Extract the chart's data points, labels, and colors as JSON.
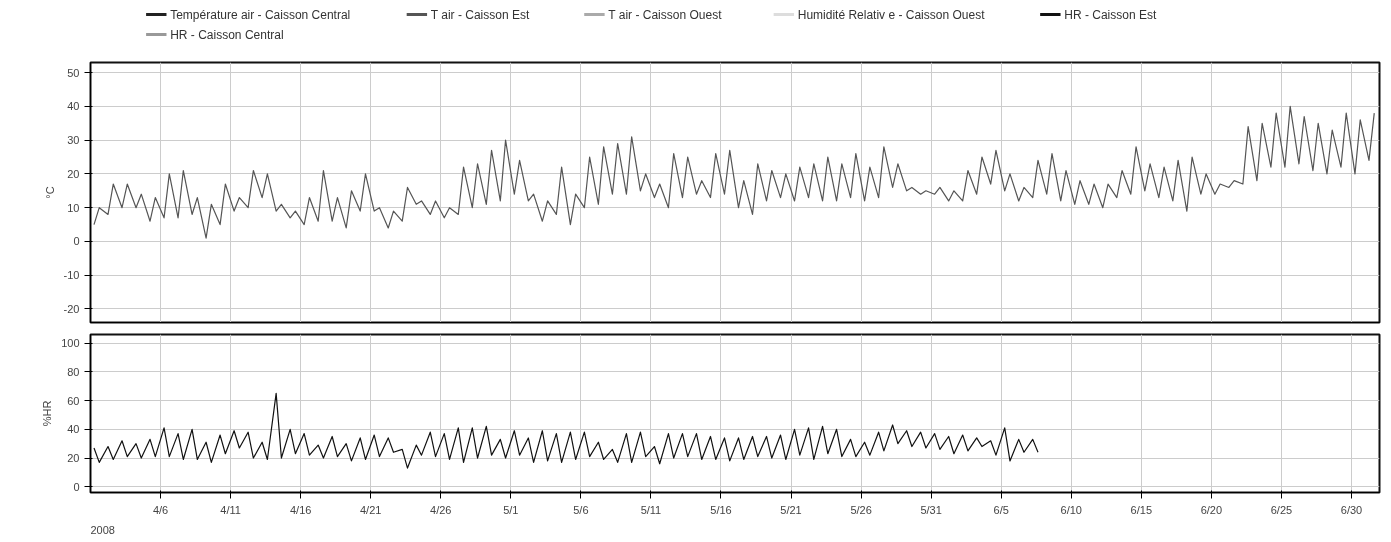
{
  "chart_data": [
    {
      "type": "line",
      "ylabel": "°C",
      "xlim": [
        "2008-04-01",
        "2008-07-02"
      ],
      "ylim": [
        -24,
        53
      ],
      "yticks": [
        -20,
        -10,
        0,
        10,
        20,
        30,
        40,
        50
      ],
      "xticks": [
        {
          "value": "2008-04-06",
          "label": null
        },
        {
          "value": "2008-04-11",
          "label": null
        },
        {
          "value": "2008-04-16",
          "label": null
        },
        {
          "value": "2008-04-21",
          "label": null
        },
        {
          "value": "2008-04-26",
          "label": null
        },
        {
          "value": "2008-05-01",
          "label": null
        },
        {
          "value": "2008-05-06",
          "label": null
        },
        {
          "value": "2008-05-11",
          "label": null
        },
        {
          "value": "2008-05-16",
          "label": null
        },
        {
          "value": "2008-05-21",
          "label": null
        },
        {
          "value": "2008-05-26",
          "label": null
        },
        {
          "value": "2008-05-31",
          "label": null
        },
        {
          "value": "2008-06-05",
          "label": null
        },
        {
          "value": "2008-06-10",
          "label": null
        },
        {
          "value": "2008-06-15",
          "label": null
        },
        {
          "value": "2008-06-20",
          "label": null
        },
        {
          "value": "2008-06-25",
          "label": null
        },
        {
          "value": "2008-06-30",
          "label": null
        }
      ],
      "tick_labels": "y",
      "grid": true,
      "legend": "top",
      "marker": "none",
      "series": [
        {
          "name": "Température air - Caisson Central",
          "color": "#222222"
        },
        {
          "name": "T air - Caisson Est",
          "color": "#555555",
          "x": [
            "2008-04-01T06:00",
            "2008-04-01T15:00",
            "2008-04-02T06:00",
            "2008-04-02T15:00",
            "2008-04-03T06:00",
            "2008-04-03T15:00",
            "2008-04-04T06:00",
            "2008-04-04T15:00",
            "2008-04-05T06:00",
            "2008-04-05T15:00",
            "2008-04-06T06:00",
            "2008-04-06T15:00",
            "2008-04-07T06:00",
            "2008-04-07T15:00",
            "2008-04-08T06:00",
            "2008-04-08T15:00",
            "2008-04-09T06:00",
            "2008-04-09T15:00",
            "2008-04-10T06:00",
            "2008-04-10T15:00",
            "2008-04-11T06:00",
            "2008-04-11T15:00",
            "2008-04-12T06:00",
            "2008-04-12T15:00",
            "2008-04-13T06:00",
            "2008-04-13T15:00",
            "2008-04-14T06:00",
            "2008-04-14T15:00",
            "2008-04-15T06:00",
            "2008-04-15T15:00",
            "2008-04-16T06:00",
            "2008-04-16T15:00",
            "2008-04-17T06:00",
            "2008-04-17T15:00",
            "2008-04-18T06:00",
            "2008-04-18T15:00",
            "2008-04-19T06:00",
            "2008-04-19T15:00",
            "2008-04-20T06:00",
            "2008-04-20T15:00",
            "2008-04-21T06:00",
            "2008-04-21T15:00",
            "2008-04-22T06:00",
            "2008-04-22T15:00",
            "2008-04-23T06:00",
            "2008-04-23T15:00",
            "2008-04-24T06:00",
            "2008-04-24T15:00",
            "2008-04-25T06:00",
            "2008-04-25T15:00",
            "2008-04-26T06:00",
            "2008-04-26T15:00",
            "2008-04-27T06:00",
            "2008-04-27T15:00",
            "2008-04-28T06:00",
            "2008-04-28T15:00",
            "2008-04-29T06:00",
            "2008-04-29T15:00",
            "2008-04-30T06:00",
            "2008-04-30T15:00",
            "2008-05-01T06:00",
            "2008-05-01T15:00",
            "2008-05-02T06:00",
            "2008-05-02T15:00",
            "2008-05-03T06:00",
            "2008-05-03T15:00",
            "2008-05-04T06:00",
            "2008-05-04T15:00",
            "2008-05-05T06:00",
            "2008-05-05T15:00",
            "2008-05-06T06:00",
            "2008-05-06T15:00",
            "2008-05-07T06:00",
            "2008-05-07T15:00",
            "2008-05-08T06:00",
            "2008-05-08T15:00",
            "2008-05-09T06:00",
            "2008-05-09T15:00",
            "2008-05-10T06:00",
            "2008-05-10T15:00",
            "2008-05-11T06:00",
            "2008-05-11T15:00",
            "2008-05-12T06:00",
            "2008-05-12T15:00",
            "2008-05-13T06:00",
            "2008-05-13T15:00",
            "2008-05-14T06:00",
            "2008-05-14T15:00",
            "2008-05-15T06:00",
            "2008-05-15T15:00",
            "2008-05-16T06:00",
            "2008-05-16T15:00",
            "2008-05-17T06:00",
            "2008-05-17T15:00",
            "2008-05-18T06:00",
            "2008-05-18T15:00",
            "2008-05-19T06:00",
            "2008-05-19T15:00",
            "2008-05-20T06:00",
            "2008-05-20T15:00",
            "2008-05-21T06:00",
            "2008-05-21T15:00",
            "2008-05-22T06:00",
            "2008-05-22T15:00",
            "2008-05-23T06:00",
            "2008-05-23T15:00",
            "2008-05-24T06:00",
            "2008-05-24T15:00",
            "2008-05-25T06:00",
            "2008-05-25T15:00",
            "2008-05-26T06:00",
            "2008-05-26T15:00",
            "2008-05-27T06:00",
            "2008-05-27T15:00",
            "2008-05-28T06:00",
            "2008-05-28T15:00",
            "2008-05-29T06:00",
            "2008-05-29T15:00",
            "2008-05-30T06:00",
            "2008-05-30T15:00",
            "2008-05-31T06:00",
            "2008-05-31T15:00",
            "2008-06-01T06:00",
            "2008-06-01T15:00",
            "2008-06-02T06:00",
            "2008-06-02T15:00",
            "2008-06-03T06:00",
            "2008-06-03T15:00",
            "2008-06-04T06:00",
            "2008-06-04T15:00",
            "2008-06-05T06:00",
            "2008-06-05T15:00",
            "2008-06-06T06:00",
            "2008-06-06T15:00",
            "2008-06-07T06:00",
            "2008-06-07T15:00",
            "2008-06-08T06:00",
            "2008-06-08T15:00",
            "2008-06-09T06:00",
            "2008-06-09T15:00",
            "2008-06-10T06:00",
            "2008-06-10T15:00",
            "2008-06-11T06:00",
            "2008-06-11T15:00",
            "2008-06-12T06:00",
            "2008-06-12T15:00",
            "2008-06-13T06:00",
            "2008-06-13T15:00",
            "2008-06-14T06:00",
            "2008-06-14T15:00",
            "2008-06-15T06:00",
            "2008-06-15T15:00",
            "2008-06-16T06:00",
            "2008-06-16T15:00",
            "2008-06-17T06:00",
            "2008-06-17T15:00",
            "2008-06-18T06:00",
            "2008-06-18T15:00",
            "2008-06-19T06:00",
            "2008-06-19T15:00",
            "2008-06-20T06:00",
            "2008-06-20T15:00",
            "2008-06-21T06:00",
            "2008-06-21T15:00",
            "2008-06-22T06:00",
            "2008-06-22T15:00",
            "2008-06-23T06:00",
            "2008-06-23T15:00",
            "2008-06-24T06:00",
            "2008-06-24T15:00",
            "2008-06-25T06:00",
            "2008-06-25T15:00",
            "2008-06-26T06:00",
            "2008-06-26T15:00",
            "2008-06-27T06:00",
            "2008-06-27T15:00",
            "2008-06-28T06:00",
            "2008-06-28T15:00",
            "2008-06-29T06:00",
            "2008-06-29T15:00",
            "2008-06-30T06:00",
            "2008-06-30T15:00",
            "2008-07-01T06:00",
            "2008-07-01T15:00"
          ],
          "values": [
            5,
            10,
            8,
            17,
            10,
            17,
            10,
            14,
            6,
            13,
            7,
            20,
            7,
            21,
            8,
            13,
            1,
            11,
            5,
            17,
            9,
            13,
            10,
            21,
            13,
            20,
            9,
            11,
            7,
            9,
            5,
            13,
            6,
            21,
            6,
            13,
            4,
            15,
            9,
            20,
            9,
            10,
            4,
            9,
            6,
            16,
            11,
            12,
            8,
            12,
            7,
            10,
            8,
            22,
            10,
            23,
            11,
            27,
            12,
            30,
            14,
            24,
            12,
            14,
            6,
            12,
            8,
            22,
            5,
            14,
            10,
            25,
            11,
            28,
            14,
            29,
            14,
            31,
            15,
            20,
            13,
            17,
            10,
            26,
            13,
            25,
            14,
            18,
            13,
            26,
            14,
            27,
            10,
            18,
            8,
            23,
            12,
            21,
            13,
            20,
            12,
            22,
            13,
            23,
            12,
            25,
            12,
            23,
            13,
            26,
            12,
            22,
            13,
            28,
            16,
            23,
            15,
            16,
            14,
            15,
            14,
            16,
            12,
            15,
            12,
            21,
            14,
            25,
            17,
            27,
            15,
            20,
            12,
            16,
            13,
            24,
            14,
            26,
            12,
            21,
            11,
            18,
            11,
            17,
            10,
            17,
            13,
            21,
            14,
            28,
            15,
            23,
            13,
            22,
            12,
            24,
            9,
            25,
            14,
            20,
            14,
            17,
            16,
            18,
            17,
            34,
            18,
            35,
            22,
            38,
            22,
            40,
            23,
            37,
            21,
            35,
            20,
            33,
            22,
            38,
            20,
            36,
            24,
            38
          ]
        },
        {
          "name": "T air - Caisson Ouest",
          "color": "#aaaaaa"
        },
        {
          "name": "Humidité Relativ e - Caisson Ouest",
          "color": "#dddddd"
        }
      ]
    },
    {
      "type": "line",
      "ylabel": "%HR",
      "xlim": [
        "2008-04-01",
        "2008-07-02"
      ],
      "ylim": [
        -4,
        106
      ],
      "yticks": [
        0,
        20,
        40,
        60,
        80,
        100
      ],
      "xticks": [
        {
          "value": "2008-04-06",
          "label": "4/6"
        },
        {
          "value": "2008-04-11",
          "label": "4/11"
        },
        {
          "value": "2008-04-16",
          "label": "4/16"
        },
        {
          "value": "2008-04-21",
          "label": "4/21"
        },
        {
          "value": "2008-04-26",
          "label": "4/26"
        },
        {
          "value": "2008-05-01",
          "label": "5/1"
        },
        {
          "value": "2008-05-06",
          "label": "5/6"
        },
        {
          "value": "2008-05-11",
          "label": "5/11"
        },
        {
          "value": "2008-05-16",
          "label": "5/16"
        },
        {
          "value": "2008-05-21",
          "label": "5/21"
        },
        {
          "value": "2008-05-26",
          "label": "5/26"
        },
        {
          "value": "2008-05-31",
          "label": "5/31"
        },
        {
          "value": "2008-06-05",
          "label": "6/5"
        },
        {
          "value": "2008-06-10",
          "label": "6/10"
        },
        {
          "value": "2008-06-15",
          "label": "6/15"
        },
        {
          "value": "2008-06-20",
          "label": "6/20"
        },
        {
          "value": "2008-06-25",
          "label": "6/25"
        },
        {
          "value": "2008-06-30",
          "label": "6/30"
        }
      ],
      "grid": true,
      "marker": "none",
      "annotations": [
        "2008"
      ],
      "series": [
        {
          "name": "HR - Caisson Est",
          "color": "#111111",
          "x": [
            "2008-04-01T06:00",
            "2008-04-01T15:00",
            "2008-04-02T06:00",
            "2008-04-02T15:00",
            "2008-04-03T06:00",
            "2008-04-03T15:00",
            "2008-04-04T06:00",
            "2008-04-04T15:00",
            "2008-04-05T06:00",
            "2008-04-05T15:00",
            "2008-04-06T06:00",
            "2008-04-06T15:00",
            "2008-04-07T06:00",
            "2008-04-07T15:00",
            "2008-04-08T06:00",
            "2008-04-08T15:00",
            "2008-04-09T06:00",
            "2008-04-09T15:00",
            "2008-04-10T06:00",
            "2008-04-10T15:00",
            "2008-04-11T06:00",
            "2008-04-11T15:00",
            "2008-04-12T06:00",
            "2008-04-12T15:00",
            "2008-04-13T06:00",
            "2008-04-13T15:00",
            "2008-04-14T06:00",
            "2008-04-14T15:00",
            "2008-04-15T06:00",
            "2008-04-15T15:00",
            "2008-04-16T06:00",
            "2008-04-16T15:00",
            "2008-04-17T06:00",
            "2008-04-17T15:00",
            "2008-04-18T06:00",
            "2008-04-18T15:00",
            "2008-04-19T06:00",
            "2008-04-19T15:00",
            "2008-04-20T06:00",
            "2008-04-20T15:00",
            "2008-04-21T06:00",
            "2008-04-21T15:00",
            "2008-04-22T06:00",
            "2008-04-22T15:00",
            "2008-04-23T06:00",
            "2008-04-23T15:00",
            "2008-04-24T06:00",
            "2008-04-24T15:00",
            "2008-04-25T06:00",
            "2008-04-25T15:00",
            "2008-04-26T06:00",
            "2008-04-26T15:00",
            "2008-04-27T06:00",
            "2008-04-27T15:00",
            "2008-04-28T06:00",
            "2008-04-28T15:00",
            "2008-04-29T06:00",
            "2008-04-29T15:00",
            "2008-04-30T06:00",
            "2008-04-30T15:00",
            "2008-05-01T06:00",
            "2008-05-01T15:00",
            "2008-05-02T06:00",
            "2008-05-02T15:00",
            "2008-05-03T06:00",
            "2008-05-03T15:00",
            "2008-05-04T06:00",
            "2008-05-04T15:00",
            "2008-05-05T06:00",
            "2008-05-05T15:00",
            "2008-05-06T06:00",
            "2008-05-06T15:00",
            "2008-05-07T06:00",
            "2008-05-07T15:00",
            "2008-05-08T06:00",
            "2008-05-08T15:00",
            "2008-05-09T06:00",
            "2008-05-09T15:00",
            "2008-05-10T06:00",
            "2008-05-10T15:00",
            "2008-05-11T06:00",
            "2008-05-11T15:00",
            "2008-05-12T06:00",
            "2008-05-12T15:00",
            "2008-05-13T06:00",
            "2008-05-13T15:00",
            "2008-05-14T06:00",
            "2008-05-14T15:00",
            "2008-05-15T06:00",
            "2008-05-15T15:00",
            "2008-05-16T06:00",
            "2008-05-16T15:00",
            "2008-05-17T06:00",
            "2008-05-17T15:00",
            "2008-05-18T06:00",
            "2008-05-18T15:00",
            "2008-05-19T06:00",
            "2008-05-19T15:00",
            "2008-05-20T06:00",
            "2008-05-20T15:00",
            "2008-05-21T06:00",
            "2008-05-21T15:00",
            "2008-05-22T06:00",
            "2008-05-22T15:00",
            "2008-05-23T06:00",
            "2008-05-23T15:00",
            "2008-05-24T06:00",
            "2008-05-24T15:00",
            "2008-05-25T06:00",
            "2008-05-25T15:00",
            "2008-05-26T06:00",
            "2008-05-26T15:00",
            "2008-05-27T06:00",
            "2008-05-27T15:00",
            "2008-05-28T06:00",
            "2008-05-28T15:00",
            "2008-05-29T06:00",
            "2008-05-29T15:00",
            "2008-05-30T06:00",
            "2008-05-30T15:00",
            "2008-05-31T06:00",
            "2008-05-31T15:00",
            "2008-06-01T06:00",
            "2008-06-01T15:00",
            "2008-06-02T06:00",
            "2008-06-02T15:00",
            "2008-06-03T06:00",
            "2008-06-03T15:00",
            "2008-06-04T06:00",
            "2008-06-04T15:00",
            "2008-06-05T06:00",
            "2008-06-05T15:00",
            "2008-06-06T06:00",
            "2008-06-06T15:00",
            "2008-06-07T06:00",
            "2008-06-07T15:00"
          ],
          "values": [
            27,
            17,
            28,
            19,
            32,
            21,
            30,
            20,
            33,
            21,
            41,
            21,
            37,
            19,
            40,
            19,
            31,
            17,
            36,
            23,
            39,
            27,
            38,
            20,
            31,
            19,
            65,
            20,
            40,
            23,
            37,
            22,
            29,
            20,
            35,
            21,
            30,
            18,
            34,
            19,
            36,
            21,
            34,
            24,
            26,
            13,
            29,
            22,
            38,
            21,
            37,
            19,
            41,
            17,
            41,
            20,
            42,
            22,
            33,
            20,
            39,
            22,
            34,
            17,
            39,
            18,
            37,
            17,
            38,
            19,
            38,
            21,
            31,
            19,
            26,
            17,
            37,
            17,
            38,
            21,
            28,
            16,
            37,
            20,
            37,
            21,
            37,
            19,
            35,
            19,
            34,
            18,
            34,
            19,
            35,
            21,
            35,
            20,
            36,
            19,
            40,
            22,
            41,
            19,
            42,
            23,
            40,
            21,
            33,
            21,
            31,
            22,
            38,
            25,
            43,
            30,
            39,
            28,
            38,
            27,
            37,
            26,
            35,
            23,
            36,
            25,
            34,
            28,
            32,
            22,
            41,
            18,
            33,
            24,
            33,
            24
          ]
        },
        {
          "name": "HR - Caisson Central",
          "color": "#999999"
        }
      ]
    }
  ]
}
